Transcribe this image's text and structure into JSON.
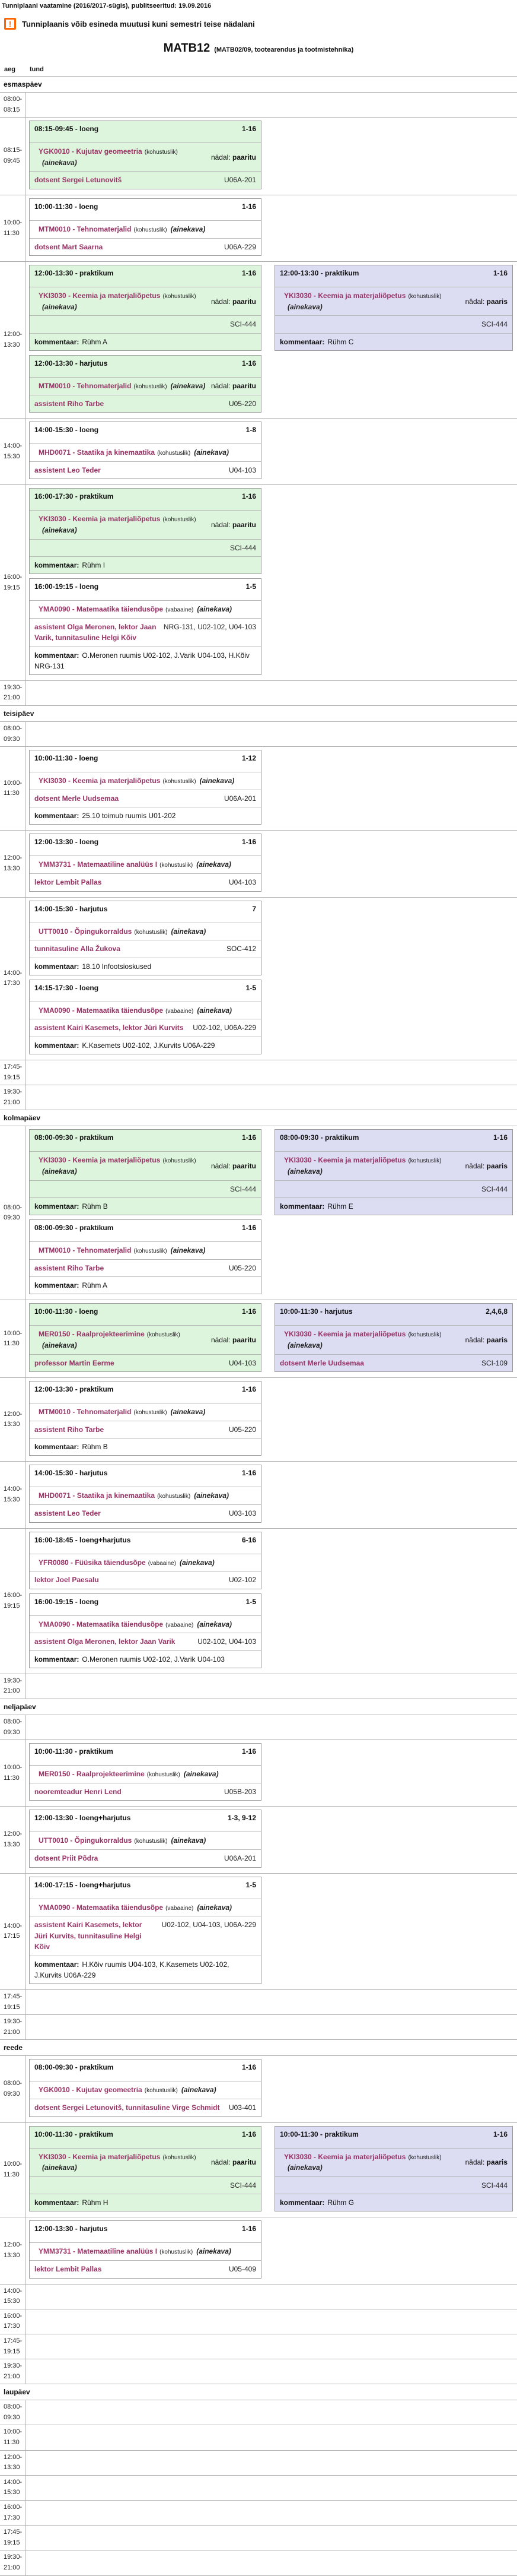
{
  "page": {
    "header": "Tunniplaani vaatamine (2016/2017-sügis), publitseeritud: 19.09.2016",
    "warning_icon": "!",
    "warning": "Tunniplaanis võib esineda muutusi kuni semestri teise nädalani",
    "title": "MATB12",
    "subtitle": "(MATB02/09, tootearendus ja tootmistehnika)",
    "col_aeg": "aeg",
    "col_tund": "tund"
  },
  "colors": {
    "odd_week_block": "#ddf5dd",
    "even_week_block": "#dcdcf3",
    "course_text": "#993366",
    "warning_orange": "#ff6600",
    "border_gray": "#b0b0b0"
  },
  "days": [
    {
      "name": "esmaspäev",
      "rows": [
        {
          "time": "08:00-08:15",
          "events": []
        },
        {
          "time": "08:15-09:45",
          "events": [
            {
              "col": "left",
              "color": "green",
              "header": "08:15-09:45 -  loeng",
              "weeks": "1-16",
              "course": "YGK0010 - Kujutav geomeetria",
              "kind": "(kohustuslik)",
              "ainekava": "(ainekava)",
              "week_label": "nädal:",
              "week_value": "paaritu",
              "teachers": "dotsent Sergei Letunovitš",
              "room": "U06A-201"
            }
          ]
        },
        {
          "time": "10:00-11:30",
          "events": [
            {
              "col": "left",
              "color": "white",
              "header": "10:00-11:30 -  loeng",
              "weeks": "1-16",
              "course": "MTM0010 - Tehnomaterjalid",
              "kind": "(kohustuslik)",
              "ainekava": "(ainekava)",
              "teachers": "dotsent Mart Saarna",
              "room": "U06A-229"
            }
          ]
        },
        {
          "time": "12:00-13:30",
          "events": [
            {
              "col": "left",
              "color": "green",
              "header": "12:00-13:30 -  praktikum",
              "weeks": "1-16",
              "course": "YKI3030 - Keemia ja materjaliõpetus",
              "kind": "(kohustuslik)",
              "ainekava": "(ainekava)",
              "week_label": "nädal:",
              "week_value": "paaritu",
              "room": "SCI-444",
              "comment_label": "kommentaar:",
              "comment": "Rühm A"
            },
            {
              "col": "left",
              "color": "green",
              "header": "12:00-13:30 -  harjutus",
              "weeks": "1-16",
              "course": "MTM0010 - Tehnomaterjalid",
              "kind": "(kohustuslik)",
              "ainekava": "(ainekava)",
              "week_label": "nädal:",
              "week_value": "paaritu",
              "teachers": "assistent Riho Tarbe",
              "room": "U05-220"
            },
            {
              "col": "right",
              "color": "lavender",
              "header": "12:00-13:30 -  praktikum",
              "weeks": "1-16",
              "course": "YKI3030 - Keemia ja materjaliõpetus",
              "kind": "(kohustuslik)",
              "ainekava": "(ainekava)",
              "week_label": "nädal:",
              "week_value": "paaris",
              "room": "SCI-444",
              "comment_label": "kommentaar:",
              "comment": "Rühm C"
            }
          ]
        },
        {
          "time": "14:00-15:30",
          "events": [
            {
              "col": "left",
              "color": "white",
              "header": "14:00-15:30 -  loeng",
              "weeks": "1-8",
              "course": "MHD0071 - Staatika ja kinemaatika",
              "kind": "(kohustuslik)",
              "ainekava": "(ainekava)",
              "teachers": "assistent Leo Teder",
              "room": "U04-103"
            }
          ]
        },
        {
          "time": "16:00-19:15",
          "events": [
            {
              "col": "left",
              "color": "green",
              "header": "16:00-17:30 -  praktikum",
              "weeks": "1-16",
              "course": "YKI3030 - Keemia ja materjaliõpetus",
              "kind": "(kohustuslik)",
              "ainekava": "(ainekava)",
              "week_label": "nädal:",
              "week_value": "paaritu",
              "room": "SCI-444",
              "comment_label": "kommentaar:",
              "comment": "Rühm I"
            },
            {
              "col": "left",
              "color": "white",
              "header": "16:00-19:15 -  loeng",
              "weeks": "1-5",
              "course": "YMA0090 - Matemaatika täiendusõpe",
              "kind": "(vabaaine)",
              "ainekava": "(ainekava)",
              "teachers": "assistent Olga Meronen,  lektor Jaan Varik,  tunnitasuline Helgi Kõiv",
              "room": "NRG-131, U02-102, U04-103",
              "comment_label": "kommentaar:",
              "comment": "O.Meronen ruumis U02-102, J.Varik U04-103, H.Kõiv NRG-131"
            }
          ]
        },
        {
          "time": "19:30-21:00",
          "events": []
        }
      ]
    },
    {
      "name": "teisipäev",
      "rows": [
        {
          "time": "08:00-09:30",
          "events": []
        },
        {
          "time": "10:00-11:30",
          "events": [
            {
              "col": "left",
              "color": "white",
              "header": "10:00-11:30 -  loeng",
              "weeks": "1-12",
              "course": "YKI3030 - Keemia ja materjaliõpetus",
              "kind": "(kohustuslik)",
              "ainekava": "(ainekava)",
              "teachers": "dotsent Merle Uudsemaa",
              "room": "U06A-201",
              "comment_label": "kommentaar:",
              "comment": "25.10 toimub ruumis U01-202"
            }
          ]
        },
        {
          "time": "12:00-13:30",
          "events": [
            {
              "col": "left",
              "color": "white",
              "header": "12:00-13:30 -  loeng",
              "weeks": "1-16",
              "course": "YMM3731 - Matemaatiline analüüs I",
              "kind": "(kohustuslik)",
              "ainekava": "(ainekava)",
              "teachers": "lektor Lembit Pallas",
              "room": "U04-103"
            }
          ]
        },
        {
          "time": "14:00-17:30",
          "events": [
            {
              "col": "left",
              "color": "white",
              "header": "14:00-15:30 -  harjutus",
              "weeks": "7",
              "course": "UTT0010 - Õpingukorraldus",
              "kind": "(kohustuslik)",
              "ainekava": "(ainekava)",
              "teachers": "tunnitasuline Alla Žukova",
              "room": "SOC-412",
              "comment_label": "kommentaar:",
              "comment": "18.10 Infootsioskused"
            },
            {
              "col": "left",
              "color": "white",
              "header": "14:15-17:30 -  loeng",
              "weeks": "1-5",
              "course": "YMA0090 - Matemaatika täiendusõpe",
              "kind": "(vabaaine)",
              "ainekava": "(ainekava)",
              "teachers": "assistent Kairi Kasemets,  lektor Jüri Kurvits",
              "room": "U02-102, U06A-229",
              "comment_label": "kommentaar:",
              "comment": "K.Kasemets U02-102, J.Kurvits U06A-229"
            }
          ]
        },
        {
          "time": "17:45-19:15",
          "events": []
        },
        {
          "time": "19:30-21:00",
          "events": []
        }
      ]
    },
    {
      "name": "kolmapäev",
      "rows": [
        {
          "time": "08:00-09:30",
          "events": [
            {
              "col": "left",
              "color": "green",
              "header": "08:00-09:30 -  praktikum",
              "weeks": "1-16",
              "course": "YKI3030 - Keemia ja materjaliõpetus",
              "kind": "(kohustuslik)",
              "ainekava": "(ainekava)",
              "week_label": "nädal:",
              "week_value": "paaritu",
              "room": "SCI-444",
              "comment_label": "kommentaar:",
              "comment": "Rühm B"
            },
            {
              "col": "left",
              "color": "white",
              "header": "08:00-09:30 -  praktikum",
              "weeks": "1-16",
              "course": "MTM0010 - Tehnomaterjalid",
              "kind": "(kohustuslik)",
              "ainekava": "(ainekava)",
              "teachers": "assistent Riho Tarbe",
              "room": "U05-220",
              "comment_label": "kommentaar:",
              "comment": "Rühm A"
            },
            {
              "col": "right",
              "color": "lavender",
              "header": "08:00-09:30 -  praktikum",
              "weeks": "1-16",
              "course": "YKI3030 - Keemia ja materjaliõpetus",
              "kind": "(kohustuslik)",
              "ainekava": "(ainekava)",
              "week_label": "nädal:",
              "week_value": "paaris",
              "room": "SCI-444",
              "comment_label": "kommentaar:",
              "comment": "Rühm E"
            }
          ]
        },
        {
          "time": "10:00-11:30",
          "events": [
            {
              "col": "left",
              "color": "green",
              "header": "10:00-11:30 -  loeng",
              "weeks": "1-16",
              "course": "MER0150 - Raalprojekteerimine",
              "kind": "(kohustuslik)",
              "ainekava": "(ainekava)",
              "week_label": "nädal:",
              "week_value": "paaritu",
              "teachers": "professor Martin Eerme",
              "room": "U04-103"
            },
            {
              "col": "right",
              "color": "lavender",
              "header": "10:00-11:30 -  harjutus",
              "weeks": "2,4,6,8",
              "course": "YKI3030 - Keemia ja materjaliõpetus",
              "kind": "(kohustuslik)",
              "ainekava": "(ainekava)",
              "week_label": "nädal:",
              "week_value": "paaris",
              "teachers": "dotsent Merle Uudsemaa",
              "room": "SCI-109"
            }
          ]
        },
        {
          "time": "12:00-13:30",
          "events": [
            {
              "col": "left",
              "color": "white",
              "header": "12:00-13:30 -  praktikum",
              "weeks": "1-16",
              "course": "MTM0010 - Tehnomaterjalid",
              "kind": "(kohustuslik)",
              "ainekava": "(ainekava)",
              "teachers": "assistent Riho Tarbe",
              "room": "U05-220",
              "comment_label": "kommentaar:",
              "comment": "Rühm B"
            }
          ]
        },
        {
          "time": "14:00-15:30",
          "events": [
            {
              "col": "left",
              "color": "white",
              "header": "14:00-15:30 -  harjutus",
              "weeks": "1-16",
              "course": "MHD0071 - Staatika ja kinemaatika",
              "kind": "(kohustuslik)",
              "ainekava": "(ainekava)",
              "teachers": "assistent Leo Teder",
              "room": "U03-103"
            }
          ]
        },
        {
          "time": "16:00-19:15",
          "events": [
            {
              "col": "left",
              "color": "white",
              "header": "16:00-18:45 -  loeng+harjutus",
              "weeks": "6-16",
              "course": "YFR0080 - Füüsika täiendusõpe",
              "kind": "(vabaaine)",
              "ainekava": "(ainekava)",
              "teachers": "lektor Joel Paesalu",
              "room": "U02-102"
            },
            {
              "col": "left",
              "color": "white",
              "header": "16:00-19:15 -  loeng",
              "weeks": "1-5",
              "course": "YMA0090 - Matemaatika täiendusõpe",
              "kind": "(vabaaine)",
              "ainekava": "(ainekava)",
              "teachers": "assistent Olga Meronen,  lektor Jaan Varik",
              "room": "U02-102, U04-103",
              "comment_label": "kommentaar:",
              "comment": "O.Meronen ruumis U02-102, J.Varik U04-103"
            }
          ]
        },
        {
          "time": "19:30-21:00",
          "events": []
        }
      ]
    },
    {
      "name": "neljapäev",
      "rows": [
        {
          "time": "08:00-09:30",
          "events": []
        },
        {
          "time": "10:00-11:30",
          "events": [
            {
              "col": "left",
              "color": "white",
              "header": "10:00-11:30 -  praktikum",
              "weeks": "1-16",
              "course": "MER0150 - Raalprojekteerimine",
              "kind": "(kohustuslik)",
              "ainekava": "(ainekava)",
              "teachers": "nooremteadur Henri Lend",
              "room": "U05B-203"
            }
          ]
        },
        {
          "time": "12:00-13:30",
          "events": [
            {
              "col": "left",
              "color": "white",
              "header": "12:00-13:30 -  loeng+harjutus",
              "weeks": "1-3, 9-12",
              "course": "UTT0010 - Õpingukorraldus",
              "kind": "(kohustuslik)",
              "ainekava": "(ainekava)",
              "teachers": "dotsent Priit Põdra",
              "room": "U06A-201"
            }
          ]
        },
        {
          "time": "14:00-17:15",
          "events": [
            {
              "col": "left",
              "color": "white",
              "header": "14:00-17:15 -  loeng+harjutus",
              "weeks": "1-5",
              "course": "YMA0090 - Matemaatika täiendusõpe",
              "kind": "(vabaaine)",
              "ainekava": "(ainekava)",
              "teachers": "assistent Kairi Kasemets,  lektor Jüri Kurvits,  tunnitasuline Helgi Kõiv",
              "room": "U02-102, U04-103, U06A-229",
              "comment_label": "kommentaar:",
              "comment": "H.Kõiv ruumis U04-103, K.Kasemets U02-102, J.Kurvits U06A-229"
            }
          ]
        },
        {
          "time": "17:45-19:15",
          "events": []
        },
        {
          "time": "19:30-21:00",
          "events": []
        }
      ]
    },
    {
      "name": "reede",
      "rows": [
        {
          "time": "08:00-09:30",
          "events": [
            {
              "col": "left",
              "color": "white",
              "header": "08:00-09:30 -  praktikum",
              "weeks": "1-16",
              "course": "YGK0010 - Kujutav geomeetria",
              "kind": "(kohustuslik)",
              "ainekava": "(ainekava)",
              "teachers": "dotsent Sergei Letunovitš,  tunnitasuline Virge Schmidt",
              "room": "U03-401"
            }
          ]
        },
        {
          "time": "10:00-11:30",
          "events": [
            {
              "col": "left",
              "color": "green",
              "header": "10:00-11:30 -  praktikum",
              "weeks": "1-16",
              "course": "YKI3030 - Keemia ja materjaliõpetus",
              "kind": "(kohustuslik)",
              "ainekava": "(ainekava)",
              "week_label": "nädal:",
              "week_value": "paaritu",
              "room": "SCI-444",
              "comment_label": "kommentaar:",
              "comment": "Rühm H"
            },
            {
              "col": "right",
              "color": "lavender",
              "header": "10:00-11:30 -  praktikum",
              "weeks": "1-16",
              "course": "YKI3030 - Keemia ja materjaliõpetus",
              "kind": "(kohustuslik)",
              "ainekava": "(ainekava)",
              "week_label": "nädal:",
              "week_value": "paaris",
              "room": "SCI-444",
              "comment_label": "kommentaar:",
              "comment": "Rühm G"
            }
          ]
        },
        {
          "time": "12:00-13:30",
          "events": [
            {
              "col": "left",
              "color": "white",
              "header": "12:00-13:30 -  harjutus",
              "weeks": "1-16",
              "course": "YMM3731 - Matemaatiline analüüs I",
              "kind": "(kohustuslik)",
              "ainekava": "(ainekava)",
              "teachers": "lektor Lembit Pallas",
              "room": "U05-409"
            }
          ]
        },
        {
          "time": "14:00-15:30",
          "events": []
        },
        {
          "time": "16:00-17:30",
          "events": []
        },
        {
          "time": "17:45-19:15",
          "events": []
        },
        {
          "time": "19:30-21:00",
          "events": []
        }
      ]
    },
    {
      "name": "laupäev",
      "rows": [
        {
          "time": "08:00-09:30",
          "events": []
        },
        {
          "time": "10:00-11:30",
          "events": []
        },
        {
          "time": "12:00-13:30",
          "events": []
        },
        {
          "time": "14:00-15:30",
          "events": []
        },
        {
          "time": "16:00-17:30",
          "events": []
        },
        {
          "time": "17:45-19:15",
          "events": []
        },
        {
          "time": "19:30-21:00",
          "events": []
        }
      ]
    }
  ]
}
